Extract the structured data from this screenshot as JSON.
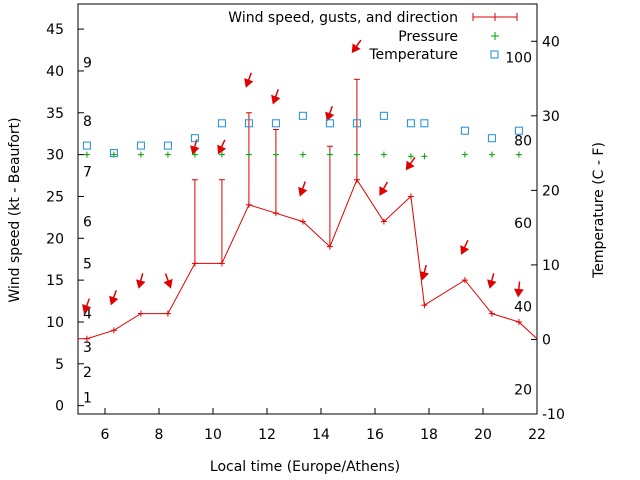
{
  "chart_data": {
    "type": "line",
    "xlabel": "Local time (Europe/Athens)",
    "ylabel_left": "Wind speed (kt - Beaufort)",
    "ylabel_right": "Temperature (C - F)",
    "xlim": [
      5,
      22
    ],
    "ylim_left": [
      -1,
      48
    ],
    "ylim_right": [
      -10,
      45
    ],
    "x_ticks": [
      6,
      8,
      10,
      12,
      14,
      16,
      18,
      20,
      22
    ],
    "y_ticks_left": [
      0,
      5,
      10,
      15,
      20,
      25,
      30,
      35,
      40,
      45
    ],
    "y_ticks_right": [
      -10,
      0,
      10,
      20,
      30,
      40
    ],
    "beaufort_labels": [
      {
        "text": "1",
        "y": 1
      },
      {
        "text": "2",
        "y": 4
      },
      {
        "text": "3",
        "y": 7
      },
      {
        "text": "4",
        "y": 11
      },
      {
        "text": "5",
        "y": 17
      },
      {
        "text": "6",
        "y": 22
      },
      {
        "text": "7",
        "y": 28
      },
      {
        "text": "8",
        "y": 34
      },
      {
        "text": "9",
        "y": 41
      }
    ],
    "fahrenheit_labels": [
      {
        "text": "20",
        "t": -6.7
      },
      {
        "text": "40",
        "t": 4.4
      },
      {
        "text": "60",
        "t": 15.6
      },
      {
        "text": "80",
        "t": 26.7
      },
      {
        "text": "100",
        "t": 37.8
      }
    ],
    "legend": {
      "position": "top-right",
      "wind_label": "Wind speed, gusts, and direction",
      "pressure_label": "Pressure",
      "temperature_label": "Temperature"
    },
    "colors": {
      "wind": "#e00000",
      "pressure": "#00a000",
      "temperature": "#1a8fd8"
    },
    "wind_speed": {
      "x": [
        5,
        5.33,
        6.33,
        7.33,
        8.33,
        9.33,
        10.33,
        11.33,
        12.33,
        13.33,
        14.33,
        15.33,
        16.33,
        17.33,
        17.83,
        19.33,
        20.33,
        21.33,
        22
      ],
      "y": [
        8,
        8,
        9,
        11,
        11,
        17,
        17,
        24,
        23,
        22,
        19,
        27,
        22,
        25,
        12,
        15,
        11,
        10,
        8
      ]
    },
    "gusts": [
      {
        "x": 9.33,
        "low": 17,
        "high": 27
      },
      {
        "x": 10.33,
        "low": 17,
        "high": 27
      },
      {
        "x": 11.33,
        "low": 24,
        "high": 35
      },
      {
        "x": 12.33,
        "low": 23,
        "high": 33
      },
      {
        "x": 14.33,
        "low": 19,
        "high": 31
      },
      {
        "x": 15.33,
        "low": 27,
        "high": 39
      }
    ],
    "direction_arrows": [
      {
        "x": 5.33,
        "y": 12,
        "angle": 20
      },
      {
        "x": 6.33,
        "y": 13,
        "angle": 20
      },
      {
        "x": 7.33,
        "y": 15,
        "angle": 15
      },
      {
        "x": 8.33,
        "y": 15,
        "angle": -20
      },
      {
        "x": 9.33,
        "y": 31,
        "angle": 15
      },
      {
        "x": 10.33,
        "y": 31,
        "angle": 25
      },
      {
        "x": 11.33,
        "y": 39,
        "angle": 20
      },
      {
        "x": 12.33,
        "y": 37,
        "angle": 20
      },
      {
        "x": 13.33,
        "y": 26,
        "angle": 20
      },
      {
        "x": 14.33,
        "y": 35,
        "angle": 20
      },
      {
        "x": 15.33,
        "y": 43,
        "angle": 35
      },
      {
        "x": 16.33,
        "y": 26,
        "angle": 30
      },
      {
        "x": 17.33,
        "y": 29,
        "angle": 35
      },
      {
        "x": 17.83,
        "y": 16,
        "angle": 15
      },
      {
        "x": 19.33,
        "y": 19,
        "angle": 25
      },
      {
        "x": 20.33,
        "y": 15,
        "angle": 15
      },
      {
        "x": 21.33,
        "y": 14,
        "angle": 5
      }
    ],
    "pressure": {
      "x": [
        5.33,
        6.33,
        7.33,
        8.33,
        9.33,
        10.33,
        11.33,
        12.33,
        13.33,
        14.33,
        15.33,
        16.33,
        17.33,
        17.83,
        19.33,
        20.33,
        21.33
      ],
      "y": [
        30,
        30,
        30,
        30,
        30,
        30,
        30,
        30,
        30,
        30,
        30,
        30,
        29.8,
        29.8,
        30,
        30,
        30
      ]
    },
    "temperature": {
      "x": [
        5.33,
        6.33,
        7.33,
        8.33,
        9.33,
        10.33,
        11.33,
        12.33,
        13.33,
        14.33,
        15.33,
        16.33,
        17.33,
        17.83,
        19.33,
        20.33,
        21.33
      ],
      "y": [
        26,
        25,
        26,
        26,
        27,
        29,
        29,
        29,
        30,
        29,
        29,
        30,
        29,
        29,
        28,
        27,
        28
      ]
    }
  }
}
